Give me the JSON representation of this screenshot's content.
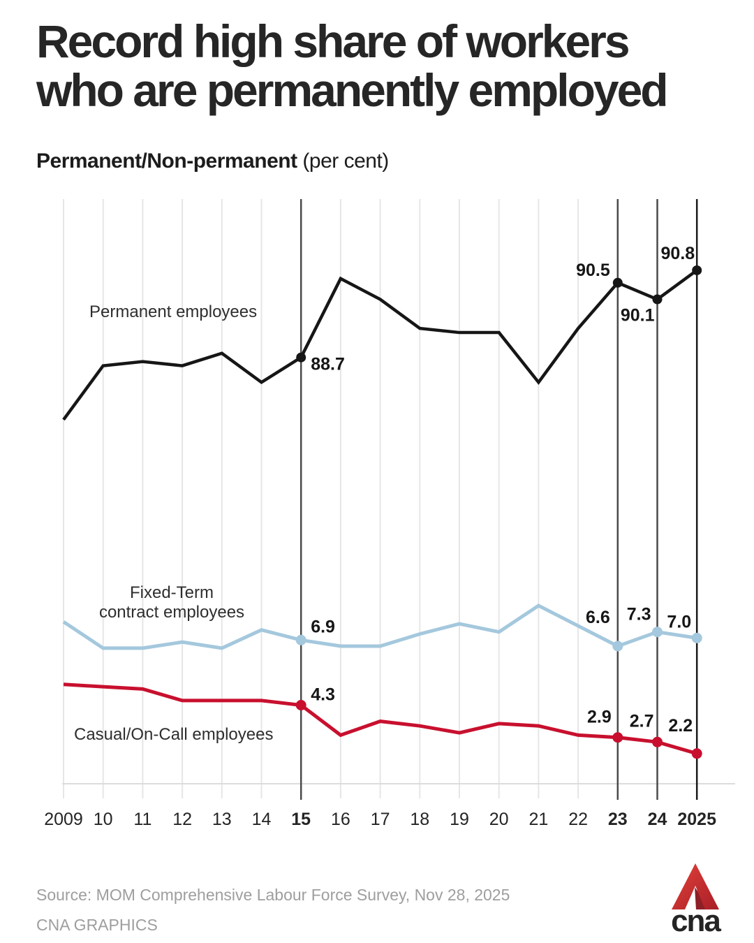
{
  "title": {
    "line1": "Record high share of workers",
    "line2": "who are permanently employed"
  },
  "subtitle": {
    "bold": "Permanent/Non-permanent",
    "normal": " (per cent)"
  },
  "chart_data": {
    "type": "line",
    "title": "Record high share of workers who are permanently employed",
    "subtitle": "Permanent/Non-permanent (per cent)",
    "ylabel": "per cent",
    "grid": "vertical-only",
    "legend_position": "inline-annotations",
    "x": [
      2009,
      2010,
      2011,
      2012,
      2013,
      2014,
      2015,
      2016,
      2017,
      2018,
      2019,
      2020,
      2021,
      2022,
      2023,
      2024,
      2025
    ],
    "x_ticks": [
      {
        "label": "2009",
        "bold": false
      },
      {
        "label": "10",
        "bold": false
      },
      {
        "label": "11",
        "bold": false
      },
      {
        "label": "12",
        "bold": false
      },
      {
        "label": "13",
        "bold": false
      },
      {
        "label": "14",
        "bold": false
      },
      {
        "label": "15",
        "bold": true
      },
      {
        "label": "16",
        "bold": false
      },
      {
        "label": "17",
        "bold": false
      },
      {
        "label": "18",
        "bold": false
      },
      {
        "label": "19",
        "bold": false
      },
      {
        "label": "20",
        "bold": false
      },
      {
        "label": "21",
        "bold": false
      },
      {
        "label": "22",
        "bold": false
      },
      {
        "label": "23",
        "bold": true
      },
      {
        "label": "24",
        "bold": true
      },
      {
        "label": "2025",
        "bold": true
      }
    ],
    "highlight_years": [
      2015,
      2023,
      2024,
      2025
    ],
    "series": [
      {
        "name": "Permanent employees",
        "label_lines": [
          "Permanent employees"
        ],
        "color": "#161616",
        "values": [
          87.2,
          88.5,
          88.6,
          88.5,
          88.8,
          88.1,
          88.7,
          90.6,
          90.1,
          89.4,
          89.3,
          89.3,
          88.1,
          89.4,
          90.5,
          90.1,
          90.8
        ],
        "point_labels": {
          "2015": "88.7",
          "2023": "90.5",
          "2024": "90.1",
          "2025": "90.8"
        }
      },
      {
        "name": "Fixed-Term contract employees",
        "label_lines": [
          "Fixed-Term",
          "contract employees"
        ],
        "color": "#a4c8dd",
        "values": [
          7.8,
          6.5,
          6.5,
          6.8,
          6.5,
          7.4,
          6.9,
          6.6,
          6.6,
          7.2,
          7.7,
          7.3,
          8.6,
          7.6,
          6.6,
          7.3,
          7.0
        ],
        "point_labels": {
          "2015": "6.9",
          "2023": "6.6",
          "2024": "7.3",
          "2025": "7.0"
        }
      },
      {
        "name": "Casual/On-Call employees",
        "label_lines": [
          "Casual/On-Call employees"
        ],
        "color": "#c8102e",
        "values": [
          5.2,
          5.1,
          5.0,
          4.5,
          4.5,
          4.5,
          4.3,
          3.0,
          3.6,
          3.4,
          3.1,
          3.5,
          3.4,
          3.0,
          2.9,
          2.7,
          2.2
        ],
        "point_labels": {
          "2015": "4.3",
          "2023": "2.9",
          "2024": "2.7",
          "2025": "2.2"
        }
      }
    ]
  },
  "source": {
    "line1": "Source: MOM Comprehensive Labour Force Survey, Nov 28, 2025",
    "line2": "CNA GRAPHICS"
  },
  "logo": {
    "text": "cna"
  }
}
